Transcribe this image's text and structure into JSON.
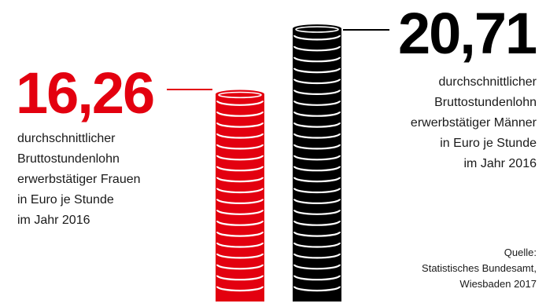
{
  "chart_data": {
    "type": "bar",
    "categories": [
      "Frauen",
      "Männer"
    ],
    "values": [
      16.26,
      20.71
    ],
    "value_labels": [
      "16,26",
      "20,71"
    ],
    "descriptions": [
      "durchschnittlicher\nBruttostundenlohn\nerwerbstätiger Frauen\nin Euro je Stunde\nim Jahr 2016",
      "durchschnittlicher\nBruttostundenlohn\nerwerbstätiger Männer\nin Euro je Stunde\nim Jahr 2016"
    ],
    "colors": [
      "#e3000f",
      "#000000"
    ],
    "style": "coin-stack",
    "source_lines": [
      "Quelle:",
      "Statistisches Bundesamt,",
      "Wiesbaden 2017"
    ]
  }
}
